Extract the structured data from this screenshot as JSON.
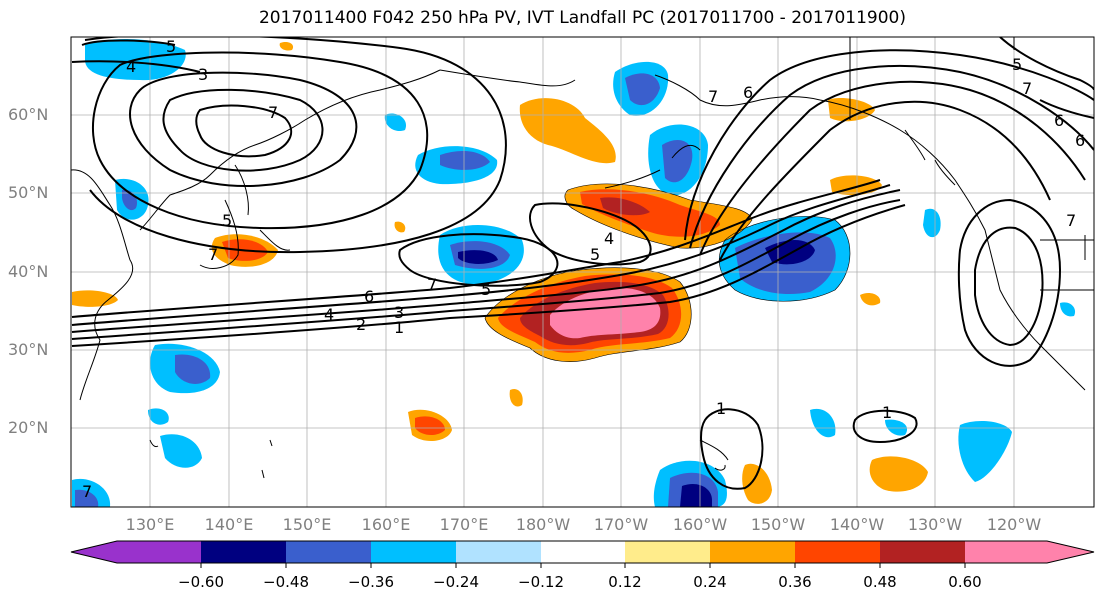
{
  "title": "2017011400 F042 250 hPa PV, IVT Landfall PC (2017011700 - 2017011900)",
  "lat_labels": [
    "60°N",
    "50°N",
    "40°N",
    "30°N",
    "20°N"
  ],
  "lon_labels": [
    "130°E",
    "140°E",
    "150°E",
    "160°E",
    "170°E",
    "180°W",
    "170°W",
    "160°W",
    "150°W",
    "140°W",
    "130°W",
    "120°W"
  ],
  "colorbar": {
    "labels": [
      "−0.60",
      "−0.48",
      "−0.36",
      "−0.24",
      "−0.12",
      "0.12",
      "0.24",
      "0.36",
      "0.48",
      "0.60"
    ],
    "colors": [
      "#9932cc",
      "#000080",
      "#3a5fcd",
      "#00bfff",
      "#b0e2ff",
      "#ffffff",
      "#ffec8b",
      "#ffa500",
      "#ff4500",
      "#b22222",
      "#ff82ab"
    ]
  },
  "contour_labels": [
    "5",
    "4",
    "3",
    "7",
    "7",
    "6",
    "5",
    "5",
    "7",
    "5",
    "6",
    "4",
    "2",
    "1",
    "3",
    "7",
    "5",
    "4",
    "6",
    "7",
    "7",
    "6",
    "1",
    "1",
    "7"
  ]
}
